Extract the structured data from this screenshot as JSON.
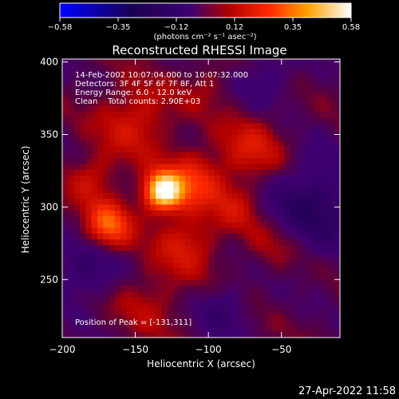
{
  "chart_data": {
    "type": "heatmap",
    "title": "Reconstructed RHESSI Image",
    "xlabel": "Heliocentric X (arcsec)",
    "ylabel": "Heliocentric Y (arcsec)",
    "xlim": [
      -200,
      -10
    ],
    "ylim": [
      210,
      402
    ],
    "x_ticks": [
      -200,
      -150,
      -100,
      -50
    ],
    "y_ticks": [
      250,
      300,
      350,
      400
    ],
    "colorbar": {
      "ticks": [
        "-0.58",
        "-0.35",
        "-0.12",
        "0.12",
        "0.35",
        "0.58"
      ],
      "range": [
        -0.58,
        0.58
      ],
      "units_label": "(photons cm⁻² s⁻¹ asec⁻²)"
    },
    "annotations": [
      "14-Feb-2002 10:07:04.000 to 10:07:32.000",
      "Detectors: 3F 4F 5F 6F 7F 8F, Att 1",
      "Energy Range: 6.0 - 12.0 keV",
      "Clean    Total counts: 2.90E+03"
    ],
    "peak_label": "Position of Peak = [-131,311]",
    "peak_position": [
      -131,
      311
    ],
    "peak_value": 0.58,
    "sources": [
      {
        "x": -131,
        "y": 311,
        "sigma": 9,
        "amplitude": 0.58
      },
      {
        "x": -110,
        "y": 318,
        "sigma": 14,
        "amplitude": 0.22
      },
      {
        "x": -168,
        "y": 288,
        "sigma": 11,
        "amplitude": 0.3
      },
      {
        "x": -150,
        "y": 360,
        "sigma": 18,
        "amplitude": 0.16
      },
      {
        "x": -115,
        "y": 275,
        "sigma": 15,
        "amplitude": 0.16
      },
      {
        "x": -70,
        "y": 340,
        "sigma": 16,
        "amplitude": 0.16
      },
      {
        "x": -80,
        "y": 300,
        "sigma": 12,
        "amplitude": 0.12
      },
      {
        "x": -180,
        "y": 320,
        "sigma": 12,
        "amplitude": 0.14
      },
      {
        "x": -55,
        "y": 275,
        "sigma": 14,
        "amplitude": 0.1
      },
      {
        "x": -140,
        "y": 235,
        "sigma": 16,
        "amplitude": 0.1
      },
      {
        "x": -100,
        "y": 385,
        "sigma": 12,
        "amplitude": 0.08
      }
    ],
    "negative_regions": [
      {
        "x": -30,
        "y": 300,
        "sigma": 22,
        "amplitude": -0.2
      },
      {
        "x": -185,
        "y": 255,
        "sigma": 14,
        "amplitude": -0.14
      },
      {
        "x": -90,
        "y": 230,
        "sigma": 12,
        "amplitude": -0.12
      },
      {
        "x": -60,
        "y": 390,
        "sigma": 14,
        "amplitude": -0.1
      }
    ]
  },
  "timestamp": "27-Apr-2022 11:58"
}
